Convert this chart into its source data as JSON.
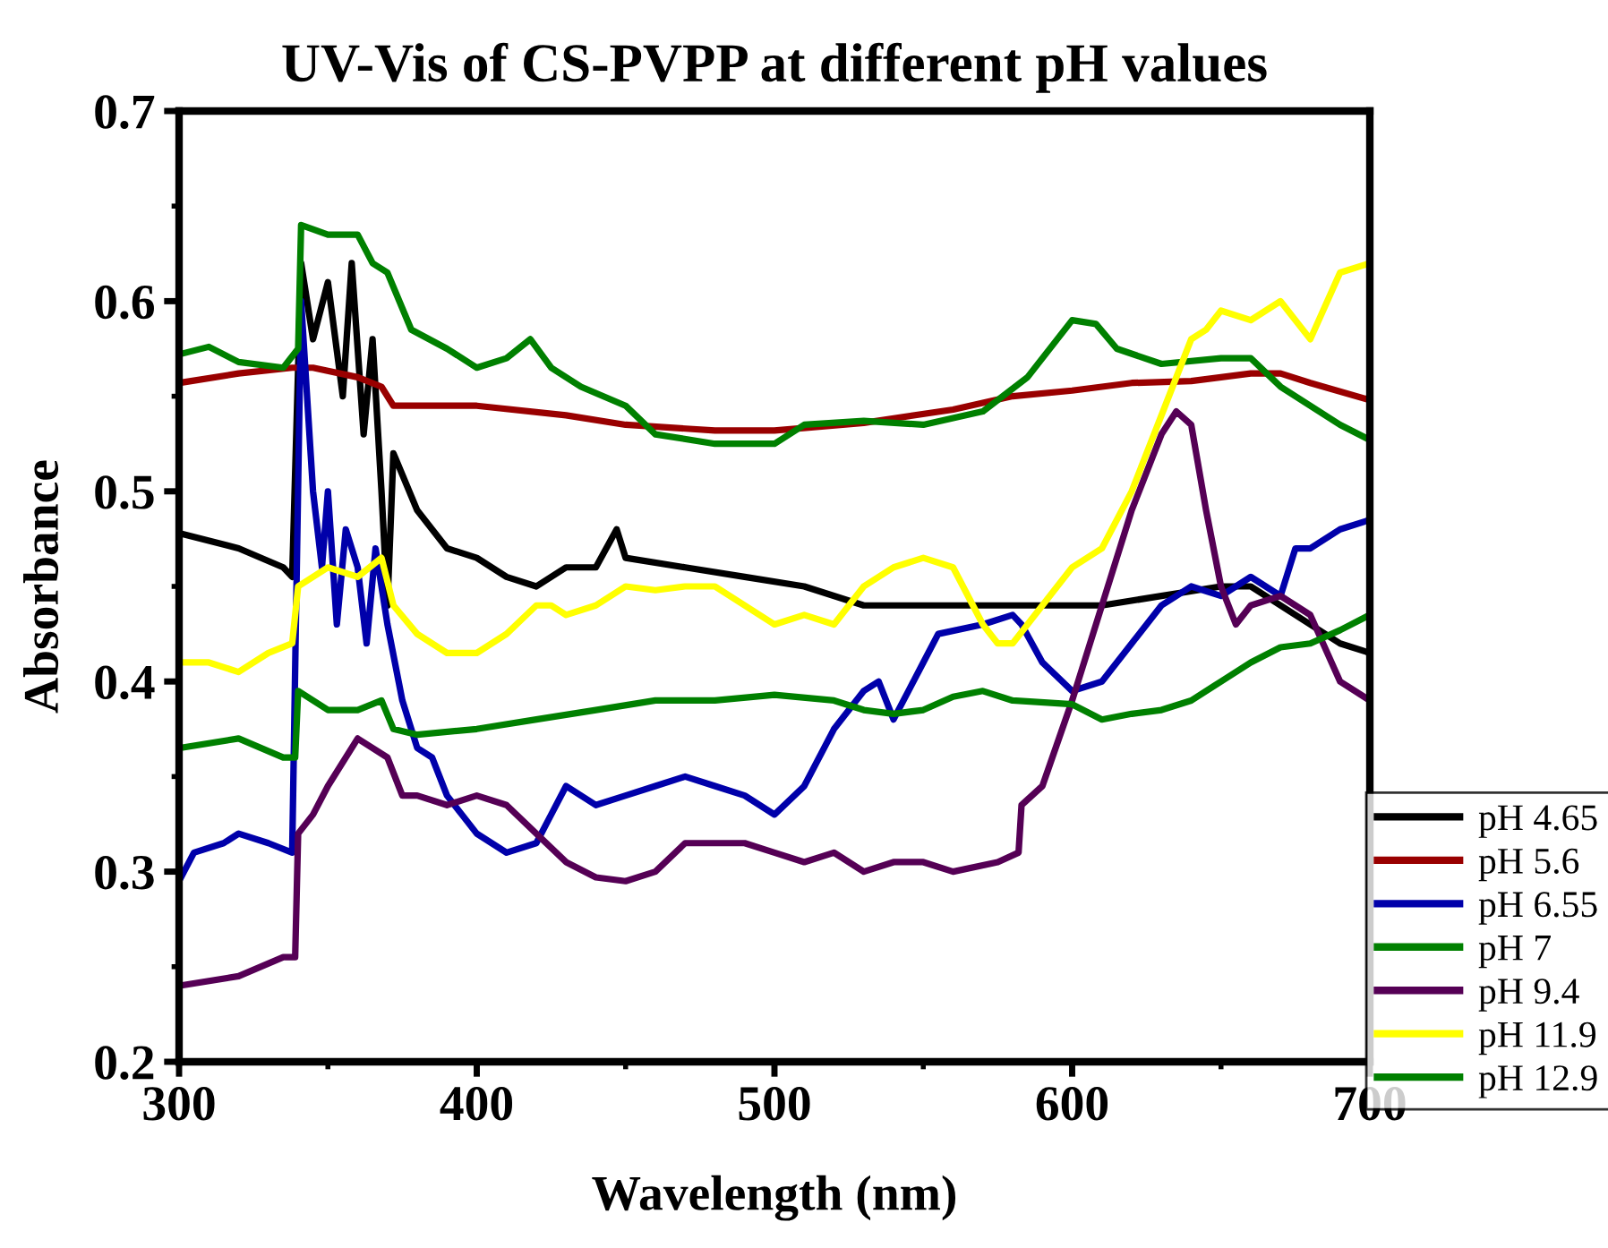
{
  "chart_data": {
    "type": "line",
    "title": "UV-Vis of CS-PVPP at different pH values",
    "xlabel": "Wavelength (nm)",
    "ylabel": "Absorbance",
    "xlim": [
      300,
      700
    ],
    "xticks": [
      300,
      400,
      500,
      600,
      700
    ],
    "ylim": [
      0.2,
      0.7
    ],
    "yticks": [
      0.2,
      0.3,
      0.4,
      0.5,
      0.6,
      0.7
    ],
    "grid": false,
    "legend": "right",
    "marker": "none",
    "line_style": "solid",
    "series": [
      {
        "name": "pH 4.65",
        "color": "#000000",
        "x": [
          300,
          320,
          335,
          338,
          341,
          345,
          350,
          355,
          358,
          362,
          365,
          368,
          370,
          372,
          380,
          390,
          400,
          410,
          420,
          430,
          440,
          447,
          450,
          470,
          490,
          510,
          530,
          550,
          570,
          590,
          610,
          630,
          650,
          660,
          670,
          680,
          690,
          700
        ],
        "values": [
          0.478,
          0.47,
          0.46,
          0.455,
          0.62,
          0.58,
          0.61,
          0.55,
          0.62,
          0.53,
          0.58,
          0.5,
          0.44,
          0.52,
          0.49,
          0.47,
          0.465,
          0.455,
          0.45,
          0.46,
          0.46,
          0.48,
          0.465,
          0.46,
          0.455,
          0.45,
          0.44,
          0.44,
          0.44,
          0.44,
          0.44,
          0.445,
          0.45,
          0.45,
          0.44,
          0.43,
          0.42,
          0.415
        ]
      },
      {
        "name": "pH 5.6",
        "color": "#990000",
        "x": [
          300,
          320,
          338,
          345,
          360,
          368,
          372,
          400,
          430,
          450,
          480,
          500,
          530,
          560,
          580,
          600,
          620,
          640,
          660,
          670,
          680,
          700
        ],
        "values": [
          0.557,
          0.562,
          0.565,
          0.565,
          0.56,
          0.555,
          0.545,
          0.545,
          0.54,
          0.535,
          0.532,
          0.532,
          0.536,
          0.543,
          0.55,
          0.553,
          0.557,
          0.558,
          0.562,
          0.562,
          0.557,
          0.548
        ]
      },
      {
        "name": "pH 6.55",
        "color": "#0000aa",
        "x": [
          300,
          305,
          315,
          320,
          330,
          338,
          341,
          345,
          348,
          350,
          353,
          356,
          360,
          363,
          366,
          368,
          370,
          375,
          380,
          385,
          390,
          395,
          400,
          410,
          420,
          425,
          430,
          440,
          450,
          460,
          470,
          480,
          490,
          500,
          510,
          520,
          530,
          535,
          540,
          545,
          550,
          555,
          570,
          580,
          583,
          590,
          600,
          610,
          620,
          630,
          640,
          650,
          660,
          670,
          675,
          680,
          690,
          700
        ],
        "values": [
          0.295,
          0.31,
          0.315,
          0.32,
          0.315,
          0.31,
          0.6,
          0.5,
          0.46,
          0.5,
          0.43,
          0.48,
          0.46,
          0.42,
          0.47,
          0.45,
          0.43,
          0.39,
          0.365,
          0.36,
          0.34,
          0.33,
          0.32,
          0.31,
          0.315,
          0.33,
          0.345,
          0.335,
          0.34,
          0.345,
          0.35,
          0.345,
          0.34,
          0.33,
          0.345,
          0.375,
          0.395,
          0.4,
          0.38,
          0.395,
          0.41,
          0.425,
          0.43,
          0.435,
          0.43,
          0.41,
          0.395,
          0.4,
          0.42,
          0.44,
          0.45,
          0.445,
          0.455,
          0.445,
          0.47,
          0.47,
          0.48,
          0.485
        ]
      },
      {
        "name": "pH 7",
        "color": "#008000",
        "x": [
          300,
          310,
          320,
          335,
          340,
          341,
          350,
          360,
          365,
          370,
          378,
          390,
          400,
          410,
          418,
          425,
          435,
          450,
          460,
          480,
          500,
          510,
          530,
          550,
          570,
          585,
          600,
          608,
          615,
          630,
          650,
          660,
          670,
          690,
          700
        ],
        "values": [
          0.572,
          0.576,
          0.568,
          0.565,
          0.575,
          0.64,
          0.635,
          0.635,
          0.62,
          0.615,
          0.585,
          0.575,
          0.565,
          0.57,
          0.58,
          0.565,
          0.555,
          0.545,
          0.53,
          0.525,
          0.525,
          0.535,
          0.537,
          0.535,
          0.542,
          0.56,
          0.59,
          0.588,
          0.575,
          0.567,
          0.57,
          0.57,
          0.555,
          0.535,
          0.527
        ]
      },
      {
        "name": "pH 9.4",
        "color": "#550055",
        "x": [
          300,
          320,
          335,
          339,
          340,
          345,
          350,
          360,
          370,
          375,
          380,
          390,
          400,
          410,
          420,
          430,
          440,
          450,
          460,
          470,
          480,
          490,
          500,
          510,
          520,
          530,
          540,
          550,
          560,
          575,
          582,
          583,
          590,
          600,
          610,
          620,
          630,
          635,
          640,
          645,
          650,
          655,
          660,
          670,
          680,
          690,
          700
        ],
        "values": [
          0.24,
          0.245,
          0.255,
          0.255,
          0.32,
          0.33,
          0.345,
          0.37,
          0.36,
          0.34,
          0.34,
          0.335,
          0.34,
          0.335,
          0.32,
          0.305,
          0.297,
          0.295,
          0.3,
          0.315,
          0.315,
          0.315,
          0.31,
          0.305,
          0.31,
          0.3,
          0.305,
          0.305,
          0.3,
          0.305,
          0.31,
          0.335,
          0.345,
          0.39,
          0.44,
          0.49,
          0.53,
          0.542,
          0.535,
          0.49,
          0.45,
          0.43,
          0.44,
          0.445,
          0.435,
          0.4,
          0.39
        ]
      },
      {
        "name": "pH 11.9",
        "color": "#ffff00",
        "x": [
          300,
          310,
          320,
          330,
          338,
          340,
          350,
          360,
          368,
          372,
          380,
          390,
          400,
          410,
          420,
          425,
          430,
          440,
          450,
          460,
          470,
          480,
          490,
          500,
          510,
          520,
          530,
          540,
          550,
          560,
          570,
          575,
          580,
          590,
          600,
          610,
          620,
          630,
          640,
          645,
          650,
          660,
          670,
          680,
          690,
          700
        ],
        "values": [
          0.41,
          0.41,
          0.405,
          0.415,
          0.42,
          0.45,
          0.46,
          0.455,
          0.465,
          0.44,
          0.425,
          0.415,
          0.415,
          0.425,
          0.44,
          0.44,
          0.435,
          0.44,
          0.45,
          0.448,
          0.45,
          0.45,
          0.44,
          0.43,
          0.435,
          0.43,
          0.45,
          0.46,
          0.465,
          0.46,
          0.43,
          0.42,
          0.42,
          0.44,
          0.46,
          0.47,
          0.5,
          0.54,
          0.58,
          0.585,
          0.595,
          0.59,
          0.6,
          0.58,
          0.615,
          0.62
        ]
      },
      {
        "name": "pH 12.9",
        "color": "#008000",
        "x": [
          300,
          320,
          335,
          339,
          340,
          350,
          360,
          368,
          372,
          380,
          400,
          420,
          440,
          460,
          480,
          500,
          520,
          530,
          540,
          550,
          560,
          570,
          580,
          600,
          610,
          620,
          630,
          640,
          650,
          660,
          670,
          680,
          690,
          700
        ],
        "values": [
          0.365,
          0.37,
          0.36,
          0.36,
          0.395,
          0.385,
          0.385,
          0.39,
          0.375,
          0.372,
          0.375,
          0.38,
          0.385,
          0.39,
          0.39,
          0.393,
          0.39,
          0.385,
          0.383,
          0.385,
          0.392,
          0.395,
          0.39,
          0.388,
          0.38,
          0.383,
          0.385,
          0.39,
          0.4,
          0.41,
          0.418,
          0.42,
          0.427,
          0.435
        ]
      }
    ]
  }
}
